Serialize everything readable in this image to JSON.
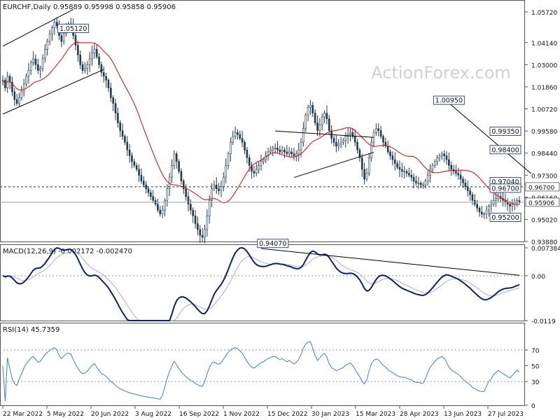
{
  "chart_data": {
    "type": "line",
    "subtype": "candlestick",
    "header": "EURCHF,Daily  0.95889 0.95998 0.95858 0.95906",
    "watermark": "ActionForex.com",
    "colors": {
      "price": "#1f3a4d",
      "ma": "#d71920",
      "macd": "#0a1f7a",
      "signal": "#b0b0b0",
      "rsi": "#3f7ec6",
      "trend": "#000000",
      "box": "#1f3a8f"
    },
    "x_labels": [
      "22 Mar 2022",
      "5 May 2022",
      "20 Jun 2022",
      "3 Aug 2022",
      "16 Sep 2022",
      "1 Nov 2022",
      "15 Dec 2022",
      "30 Jan 2023",
      "15 Mar 2023",
      "28 Apr 2023",
      "13 Jun 2023",
      "27 Jul 2023"
    ],
    "price": {
      "ylim": [
        0.9388,
        1.0572
      ],
      "ticks": [
        "1.05720",
        "1.04140",
        "1.03000",
        "1.01860",
        "1.00720",
        "0.99580",
        "0.98440",
        "0.97300",
        "0.96160",
        "0.95020",
        "0.93880"
      ],
      "current": "0.95906",
      "current_value": 0.95906,
      "level_line": "0.96700",
      "level_value": 0.967,
      "annotations": [
        {
          "label": "1.05120",
          "value": 1.0512,
          "bar": 30
        },
        {
          "label": "0.94070",
          "value": 0.9407,
          "bar": 115
        },
        {
          "label": "1.00950",
          "value": 1.0095,
          "bar": 190
        },
        {
          "label": "0.99350",
          "value": 0.9935,
          "bar": 220
        },
        {
          "label": "0.97040",
          "value": 0.9704,
          "bar": 228
        },
        {
          "label": "0.96700",
          "value": 0.967,
          "bar": 272
        },
        {
          "label": "0.98400",
          "value": 0.984,
          "bar": 285
        },
        {
          "label": "0.95200",
          "value": 0.952,
          "bar": 315
        }
      ],
      "closes": [
        1.022,
        1.018,
        1.024,
        1.021,
        1.016,
        1.012,
        1.01,
        1.013,
        1.016,
        1.02,
        1.024,
        1.027,
        1.031,
        1.033,
        1.03,
        1.027,
        1.028,
        1.033,
        1.038,
        1.042,
        1.046,
        1.049,
        1.052,
        1.05,
        1.045,
        1.042,
        1.046,
        1.049,
        1.051,
        1.05,
        1.045,
        1.04,
        1.035,
        1.03,
        1.027,
        1.028,
        1.03,
        1.033,
        1.036,
        1.038,
        1.034,
        1.03,
        1.026,
        1.024,
        1.022,
        1.018,
        1.013,
        1.01,
        1.005,
        1.0,
        0.996,
        0.993,
        0.99,
        0.986,
        0.983,
        0.98,
        0.978,
        0.976,
        0.973,
        0.97,
        0.968,
        0.966,
        0.964,
        0.962,
        0.96,
        0.958,
        0.955,
        0.953,
        0.955,
        0.96,
        0.966,
        0.972,
        0.978,
        0.984,
        0.98,
        0.975,
        0.97,
        0.966,
        0.962,
        0.958,
        0.955,
        0.952,
        0.948,
        0.945,
        0.942,
        0.941,
        0.945,
        0.952,
        0.96,
        0.966,
        0.968,
        0.966,
        0.965,
        0.967,
        0.972,
        0.978,
        0.984,
        0.99,
        0.993,
        0.995,
        0.994,
        0.992,
        0.99,
        0.986,
        0.982,
        0.978,
        0.975,
        0.974,
        0.976,
        0.978,
        0.98,
        0.981,
        0.983,
        0.985,
        0.986,
        0.987,
        0.987,
        0.986,
        0.985,
        0.986,
        0.985,
        0.984,
        0.985,
        0.984,
        0.983,
        0.984,
        0.986,
        0.99,
        0.997,
        1.004,
        1.008,
        1.009,
        1.005,
        1.0,
        0.996,
        0.999,
        1.003,
        1.005,
        1.002,
        0.996,
        0.992,
        0.99,
        0.988,
        0.989,
        0.99,
        0.991,
        0.993,
        0.994,
        0.995,
        0.993,
        0.99,
        0.986,
        0.982,
        0.976,
        0.971,
        0.974,
        0.982,
        0.99,
        0.995,
        0.997,
        0.996,
        0.993,
        0.99,
        0.988,
        0.985,
        0.983,
        0.981,
        0.979,
        0.977,
        0.976,
        0.975,
        0.975,
        0.974,
        0.973,
        0.972,
        0.97,
        0.969,
        0.969,
        0.968,
        0.968,
        0.97,
        0.973,
        0.976,
        0.978,
        0.98,
        0.982,
        0.983,
        0.984,
        0.983,
        0.981,
        0.978,
        0.976,
        0.975,
        0.974,
        0.973,
        0.971,
        0.969,
        0.967,
        0.965,
        0.963,
        0.96,
        0.958,
        0.956,
        0.954,
        0.953,
        0.953,
        0.955,
        0.957,
        0.958,
        0.96,
        0.961,
        0.962,
        0.961,
        0.96,
        0.959,
        0.958,
        0.957,
        0.958,
        0.959,
        0.96,
        0.959
      ]
    },
    "macd": {
      "label": "MACD(12,26,9) -0.002172 -0.002470",
      "ylim": [
        -0.0119,
        0.007384
      ],
      "ticks": [
        "0.007384",
        "0.00",
        "-0.0119"
      ]
    },
    "rsi": {
      "label": "RSI(14) 45.7359",
      "ylim": [
        0,
        100
      ],
      "ticks": [
        "70",
        "50",
        "30",
        "0"
      ],
      "levels": [
        70,
        30
      ]
    }
  }
}
